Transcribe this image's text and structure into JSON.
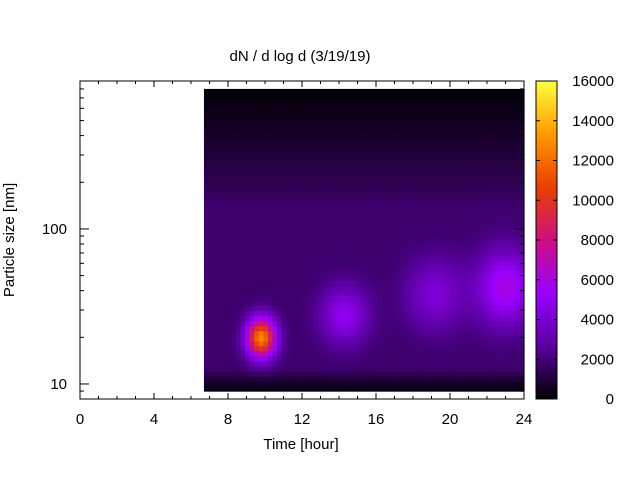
{
  "chart_data": {
    "type": "heatmap",
    "title": "dN / d log d (3/19/19)",
    "xlabel": "Time [hour]",
    "ylabel": "Particle size [nm]",
    "xlim": [
      0,
      24
    ],
    "ylim": [
      8,
      900
    ],
    "yscale": "log",
    "x_ticks": [
      0,
      4,
      8,
      12,
      16,
      20,
      24
    ],
    "x_tick_labels": [
      "0",
      "4",
      "8",
      "12",
      "16",
      "20",
      "24"
    ],
    "y_ticks": [
      10,
      100
    ],
    "y_tick_labels": [
      "10",
      "100"
    ],
    "colorbar": {
      "range": [
        0,
        16000
      ],
      "ticks": [
        0,
        2000,
        4000,
        6000,
        8000,
        10000,
        12000,
        14000,
        16000
      ],
      "tick_labels": [
        "0",
        "2000",
        "4000",
        "6000",
        "8000",
        "10000",
        "12000",
        "14000",
        "16000"
      ],
      "colormap": [
        "#000000",
        "#5a00a0",
        "#9a00ff",
        "#cc1080",
        "#e84000",
        "#ff9a00",
        "#ffff40"
      ]
    },
    "data_extent": {
      "time_start": 6.7,
      "time_end": 24,
      "size_min": 9,
      "size_max": 800
    },
    "background_level": 1800,
    "features": [
      {
        "time": 9.8,
        "size": 20,
        "peak": 12800,
        "time_width": 0.55,
        "size_width_log10": 0.09
      },
      {
        "time": 14.3,
        "size": 28,
        "peak": 5000,
        "time_width": 0.9,
        "size_width_log10": 0.13
      },
      {
        "time": 19.2,
        "size": 38,
        "peak": 4200,
        "time_width": 1.1,
        "size_width_log10": 0.16
      },
      {
        "time": 23.0,
        "size": 42,
        "peak": 6000,
        "time_width": 1.1,
        "size_width_log10": 0.17
      }
    ],
    "grid": false,
    "legend": "none"
  }
}
